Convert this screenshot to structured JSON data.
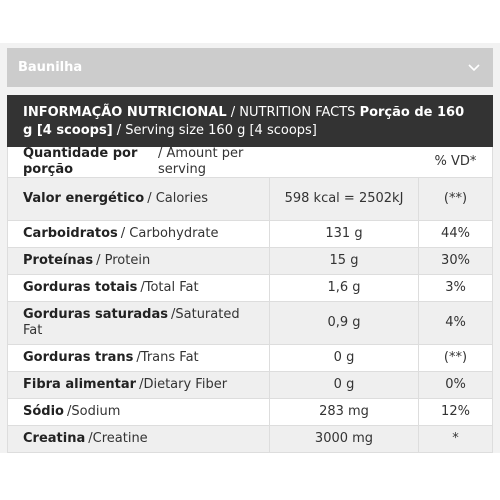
{
  "accordion": {
    "title": "Baunilha",
    "icon": "chevron-down-icon"
  },
  "table": {
    "header": {
      "title_bold": "INFORMAÇÃO NUTRICIONAL",
      "title_regular": " / NUTRITION FACTS ",
      "portion_bold": "Porção de 160 g [4 scoops]",
      "portion_regular": " / Serving size 160 g [4 scoops]"
    },
    "columns": {
      "label_bold": "Quantidade por porção",
      "label_regular": "/ Amount per serving",
      "amount": "",
      "dv": "% VD*"
    },
    "rows": [
      {
        "bold": "Valor energético",
        "regular": "/ Calories",
        "amount": "598 kcal = 2502kJ",
        "dv": "(**)"
      },
      {
        "bold": "Carboidratos",
        "regular": "/ Carbohydrate",
        "amount": "131 g",
        "dv": "44%"
      },
      {
        "bold": "Proteínas",
        "regular": "/ Protein",
        "amount": "15 g",
        "dv": "30%"
      },
      {
        "bold": "Gorduras totais",
        "regular": "/Total Fat",
        "amount": "1,6 g",
        "dv": "3%"
      },
      {
        "bold": "Gorduras saturadas",
        "regular": "/Saturated Fat",
        "amount": "0,9 g",
        "dv": "4%"
      },
      {
        "bold": "Gorduras trans",
        "regular": "/Trans Fat",
        "amount": "0 g",
        "dv": "(**)"
      },
      {
        "bold": "Fibra alimentar",
        "regular": "/Dietary Fiber",
        "amount": "0 g",
        "dv": "0%"
      },
      {
        "bold": "Sódio",
        "regular": "/Sodium",
        "amount": "283 mg",
        "dv": "12%"
      },
      {
        "bold": "Creatina",
        "regular": "/Creatine",
        "amount": "3000 mg",
        "dv": "*"
      }
    ]
  },
  "colors": {
    "header_bg": "#333333",
    "accordion_bg": "#cccccc",
    "row_shade": "#efefef"
  }
}
